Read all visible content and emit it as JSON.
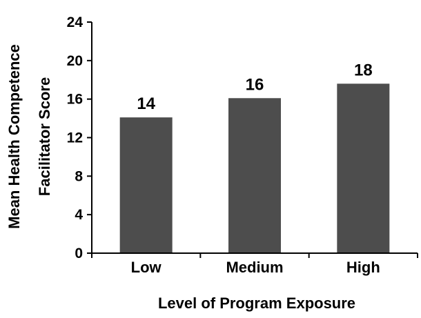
{
  "chart_data": {
    "type": "bar",
    "categories": [
      "Low",
      "Medium",
      "High"
    ],
    "values": [
      14.1,
      16.1,
      17.6
    ],
    "data_labels": [
      "14",
      "16",
      "18"
    ],
    "xlabel": "Level of Program Exposure",
    "ylabel_lines": [
      "Mean Health Competence",
      "Facilitator Score"
    ],
    "ylim": [
      0,
      24
    ],
    "yticks": [
      "0",
      "4",
      "8",
      "12",
      "16",
      "20",
      "24"
    ],
    "grid": false,
    "legend": "none",
    "colors": {
      "bar": "#4d4d4d",
      "axis": "#000000"
    }
  }
}
